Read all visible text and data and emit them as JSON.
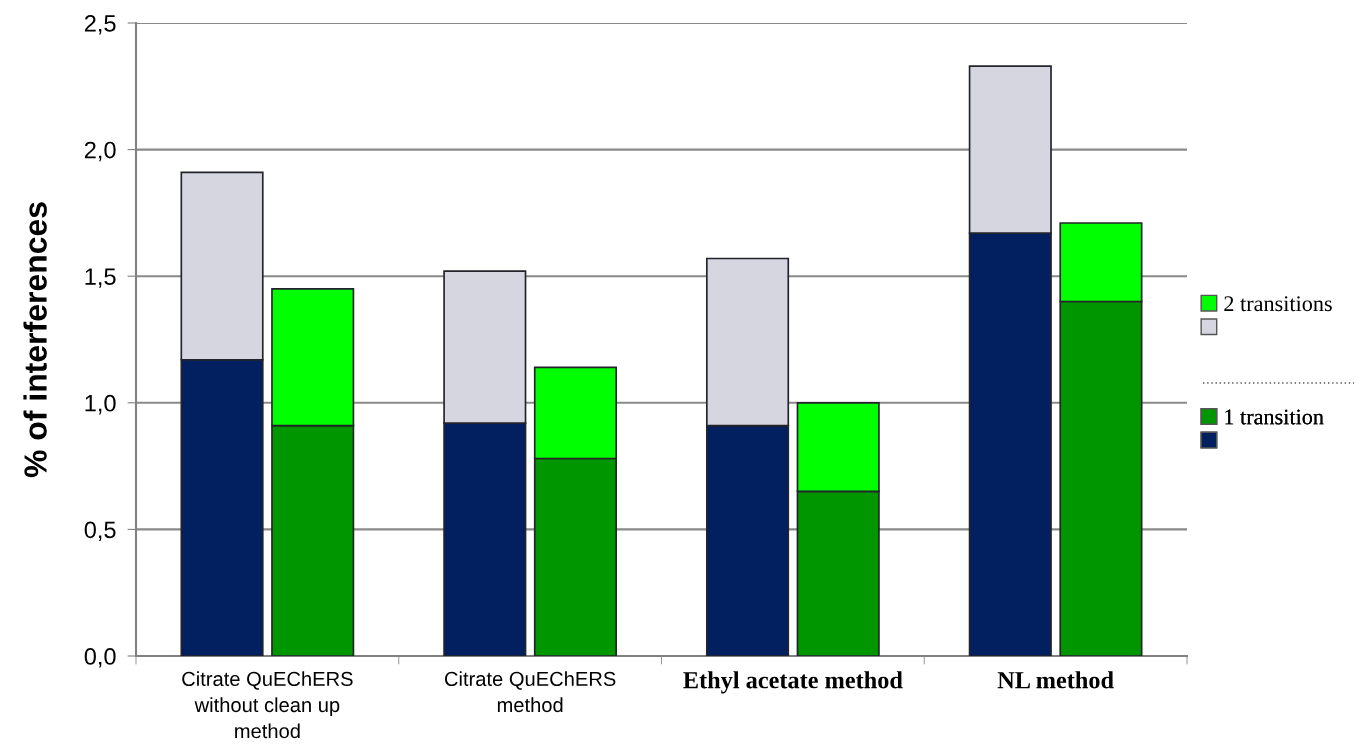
{
  "chart_data": [
    {
      "type": "bar",
      "stacked": true,
      "ylabel": "% of interferences",
      "categories": [
        "Citrate QuEChERS\nwithout clean up\nmethod",
        "Citrate QuEChERS\nmethod",
        "Ethyl acetate method",
        "NL method"
      ],
      "series": [
        {
          "color": "#02205f",
          "values": [
            1.17,
            0.92,
            0.91,
            1.67
          ]
        },
        {
          "color": "#d6d6e0",
          "values": [
            0.74,
            0.6,
            0.66,
            0.66
          ]
        }
      ],
      "ylim": [
        0,
        2.5
      ],
      "yticks": [
        {
          "value": 0,
          "label": "0,0"
        },
        {
          "value": 0.5,
          "label": "0,5"
        },
        {
          "value": 1,
          "label": "1,0"
        },
        {
          "value": 1.5,
          "label": "1,5"
        },
        {
          "value": 2,
          "label": "2,0"
        },
        {
          "value": 2.5,
          "label": "2,5"
        }
      ],
      "grid": "y"
    },
    {
      "type": "bar",
      "stacked": true,
      "categories": [
        null,
        null,
        null,
        null
      ],
      "series": [
        {
          "name": "1 transition",
          "color": "#009600",
          "values": [
            0.91,
            0.78,
            0.65,
            1.4
          ]
        },
        {
          "name": "2 transitions",
          "color": "#00ff00",
          "values": [
            0.54,
            0.36,
            0.35,
            0.31
          ]
        }
      ],
      "ylim": [
        0,
        2.5
      ],
      "tick_labels": false,
      "legend": "right"
    }
  ]
}
